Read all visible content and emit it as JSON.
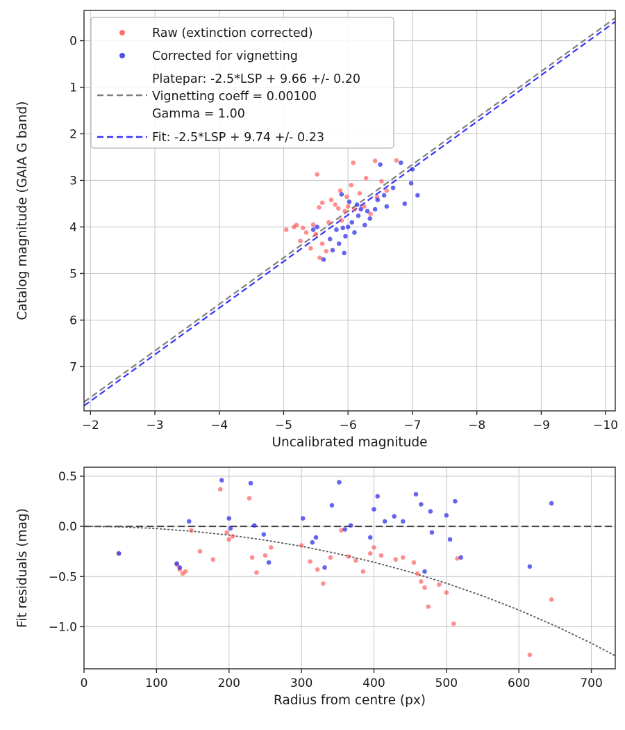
{
  "figure": {
    "background": "#ffffff",
    "spine_color": "#2b2b2b",
    "grid_color": "#c9c9c9"
  },
  "chart_data": [
    {
      "name": "magnitude-fit",
      "type": "scatter",
      "xlabel": "Uncalibrated magnitude",
      "ylabel": "Catalog magnitude (GAIA G band)",
      "xlim": [
        -1.9,
        -10.15
      ],
      "ylim": [
        -0.65,
        7.95
      ],
      "y_inverted": true,
      "grid": true,
      "xticks": [
        -2,
        -3,
        -4,
        -5,
        -6,
        -7,
        -8,
        -9,
        -10
      ],
      "yticks": [
        0,
        1,
        2,
        3,
        4,
        5,
        6,
        7
      ],
      "legend": {
        "position": "upper left",
        "raw_label": "Raw (extinction corrected)",
        "corrected_label": "Corrected for vignetting",
        "platepar_lines": [
          "Platepar: -2.5*LSP + 9.66 +/- 0.20",
          "Vignetting coeff = 0.00100",
          "Gamma = 1.00"
        ],
        "fit_label": "Fit: -2.5*LSP + 9.74 +/- 0.23"
      },
      "lines": [
        {
          "name": "platepar-line",
          "slope": 1,
          "intercept": 9.66,
          "color": "#7f7f7f",
          "style": "dashed"
        },
        {
          "name": "fit-line",
          "slope": 1,
          "intercept": 9.74,
          "color": "#3333ff",
          "style": "dashed"
        }
      ],
      "series": [
        {
          "name": "raw",
          "color": "#ff4a4a",
          "opacity": 0.62,
          "points": [
            [
              -5.52,
              2.87
            ],
            [
              -6.08,
              2.62
            ],
            [
              -6.42,
              2.58
            ],
            [
              -6.75,
              2.57
            ],
            [
              -6.28,
              2.95
            ],
            [
              -6.52,
              3.02
            ],
            [
              -6.05,
              3.1
            ],
            [
              -5.88,
              3.22
            ],
            [
              -6.18,
              3.28
            ],
            [
              -5.98,
              3.35
            ],
            [
              -5.74,
              3.42
            ],
            [
              -5.6,
              3.48
            ],
            [
              -5.55,
              3.58
            ],
            [
              -5.8,
              3.52
            ],
            [
              -6.0,
              3.56
            ],
            [
              -6.1,
              3.62
            ],
            [
              -5.95,
              3.66
            ],
            [
              -5.85,
              3.6
            ],
            [
              -6.25,
              3.56
            ],
            [
              -6.35,
              3.72
            ],
            [
              -5.46,
              3.95
            ],
            [
              -5.3,
              4.02
            ],
            [
              -5.16,
              4.0
            ],
            [
              -5.04,
              4.06
            ],
            [
              -5.35,
              4.12
            ],
            [
              -5.5,
              4.16
            ],
            [
              -5.26,
              4.3
            ],
            [
              -5.6,
              4.36
            ],
            [
              -5.42,
              4.46
            ],
            [
              -5.66,
              4.52
            ],
            [
              -5.56,
              4.66
            ],
            [
              -5.2,
              3.96
            ],
            [
              -6.45,
              3.36
            ],
            [
              -6.6,
              3.22
            ],
            [
              -5.7,
              3.9
            ],
            [
              -5.9,
              3.86
            ]
          ]
        },
        {
          "name": "corrected",
          "color": "#3030e8",
          "opacity": 0.75,
          "points": [
            [
              -6.82,
              2.62
            ],
            [
              -7.0,
              2.76
            ],
            [
              -6.5,
              2.66
            ],
            [
              -6.98,
              3.06
            ],
            [
              -7.08,
              3.32
            ],
            [
              -6.88,
              3.5
            ],
            [
              -6.6,
              3.56
            ],
            [
              -6.42,
              3.62
            ],
            [
              -6.3,
              3.66
            ],
            [
              -6.2,
              3.62
            ],
            [
              -6.16,
              3.76
            ],
            [
              -6.34,
              3.82
            ],
            [
              -6.06,
              3.9
            ],
            [
              -6.26,
              3.96
            ],
            [
              -6.0,
              4.0
            ],
            [
              -5.92,
              4.02
            ],
            [
              -5.82,
              4.06
            ],
            [
              -6.1,
              4.12
            ],
            [
              -5.96,
              4.2
            ],
            [
              -5.72,
              4.26
            ],
            [
              -5.86,
              4.36
            ],
            [
              -5.76,
              4.5
            ],
            [
              -5.94,
              4.56
            ],
            [
              -5.62,
              4.7
            ],
            [
              -6.46,
              3.42
            ],
            [
              -6.56,
              3.32
            ],
            [
              -6.7,
              3.16
            ],
            [
              -5.52,
              4.0
            ],
            [
              -5.46,
              4.06
            ],
            [
              -6.14,
              3.52
            ],
            [
              -6.02,
              3.46
            ],
            [
              -5.9,
              3.3
            ]
          ]
        }
      ]
    },
    {
      "name": "residuals",
      "type": "scatter",
      "xlabel": "Radius from centre (px)",
      "ylabel": "Fit residuals (mag)",
      "xlim": [
        0,
        733
      ],
      "ylim": [
        -1.42,
        0.59
      ],
      "y_inverted": false,
      "grid": true,
      "xticks": [
        0,
        100,
        200,
        300,
        400,
        500,
        600,
        700
      ],
      "yticks": [
        0.5,
        0.0,
        -0.5,
        -1.0
      ],
      "zero_line": {
        "y": 0,
        "color": "#404040",
        "style": "dashed"
      },
      "vignetting_curve": {
        "color": "#595959",
        "style": "dotted",
        "points": [
          [
            0,
            0
          ],
          [
            50,
            -0.005
          ],
          [
            100,
            -0.022
          ],
          [
            150,
            -0.049
          ],
          [
            200,
            -0.087
          ],
          [
            250,
            -0.137
          ],
          [
            300,
            -0.198
          ],
          [
            350,
            -0.272
          ],
          [
            400,
            -0.357
          ],
          [
            450,
            -0.455
          ],
          [
            500,
            -0.567
          ],
          [
            550,
            -0.693
          ],
          [
            600,
            -0.834
          ],
          [
            650,
            -0.991
          ],
          [
            700,
            -1.165
          ],
          [
            733,
            -1.29
          ]
        ]
      },
      "series": [
        {
          "name": "raw",
          "color": "#ff4a4a",
          "opacity": 0.62,
          "points": [
            [
              48,
              -0.27
            ],
            [
              128,
              -0.38
            ],
            [
              132,
              -0.43
            ],
            [
              136,
              -0.47
            ],
            [
              140,
              -0.45
            ],
            [
              148,
              -0.04
            ],
            [
              160,
              -0.25
            ],
            [
              178,
              -0.33
            ],
            [
              188,
              0.37
            ],
            [
              197,
              -0.06
            ],
            [
              200,
              -0.13
            ],
            [
              205,
              -0.1
            ],
            [
              228,
              0.28
            ],
            [
              232,
              -0.31
            ],
            [
              238,
              -0.46
            ],
            [
              250,
              -0.29
            ],
            [
              258,
              -0.21
            ],
            [
              300,
              -0.19
            ],
            [
              312,
              -0.35
            ],
            [
              322,
              -0.43
            ],
            [
              330,
              -0.57
            ],
            [
              340,
              -0.31
            ],
            [
              355,
              -0.04
            ],
            [
              365,
              -0.3
            ],
            [
              375,
              -0.34
            ],
            [
              385,
              -0.45
            ],
            [
              395,
              -0.27
            ],
            [
              400,
              -0.21
            ],
            [
              410,
              -0.29
            ],
            [
              430,
              -0.33
            ],
            [
              440,
              -0.31
            ],
            [
              455,
              -0.36
            ],
            [
              460,
              -0.47
            ],
            [
              465,
              -0.55
            ],
            [
              470,
              -0.61
            ],
            [
              475,
              -0.8
            ],
            [
              490,
              -0.58
            ],
            [
              500,
              -0.66
            ],
            [
              510,
              -0.97
            ],
            [
              515,
              -0.32
            ],
            [
              615,
              -1.28
            ],
            [
              645,
              -0.73
            ]
          ]
        },
        {
          "name": "corrected",
          "color": "#3030e8",
          "opacity": 0.75,
          "points": [
            [
              48,
              -0.27
            ],
            [
              128,
              -0.37
            ],
            [
              132,
              -0.41
            ],
            [
              145,
              0.05
            ],
            [
              190,
              0.46
            ],
            [
              200,
              0.08
            ],
            [
              202,
              -0.02
            ],
            [
              230,
              0.43
            ],
            [
              235,
              0.01
            ],
            [
              248,
              -0.08
            ],
            [
              255,
              -0.36
            ],
            [
              302,
              0.08
            ],
            [
              315,
              -0.16
            ],
            [
              320,
              -0.11
            ],
            [
              332,
              -0.41
            ],
            [
              342,
              0.21
            ],
            [
              352,
              0.44
            ],
            [
              360,
              -0.03
            ],
            [
              368,
              0.01
            ],
            [
              395,
              -0.11
            ],
            [
              400,
              0.17
            ],
            [
              405,
              0.3
            ],
            [
              415,
              0.05
            ],
            [
              428,
              0.1
            ],
            [
              440,
              0.05
            ],
            [
              458,
              0.32
            ],
            [
              465,
              0.22
            ],
            [
              470,
              -0.45
            ],
            [
              478,
              0.15
            ],
            [
              480,
              -0.06
            ],
            [
              500,
              0.11
            ],
            [
              505,
              -0.13
            ],
            [
              512,
              0.25
            ],
            [
              520,
              -0.31
            ],
            [
              615,
              -0.4
            ],
            [
              645,
              0.23
            ]
          ]
        }
      ]
    }
  ]
}
